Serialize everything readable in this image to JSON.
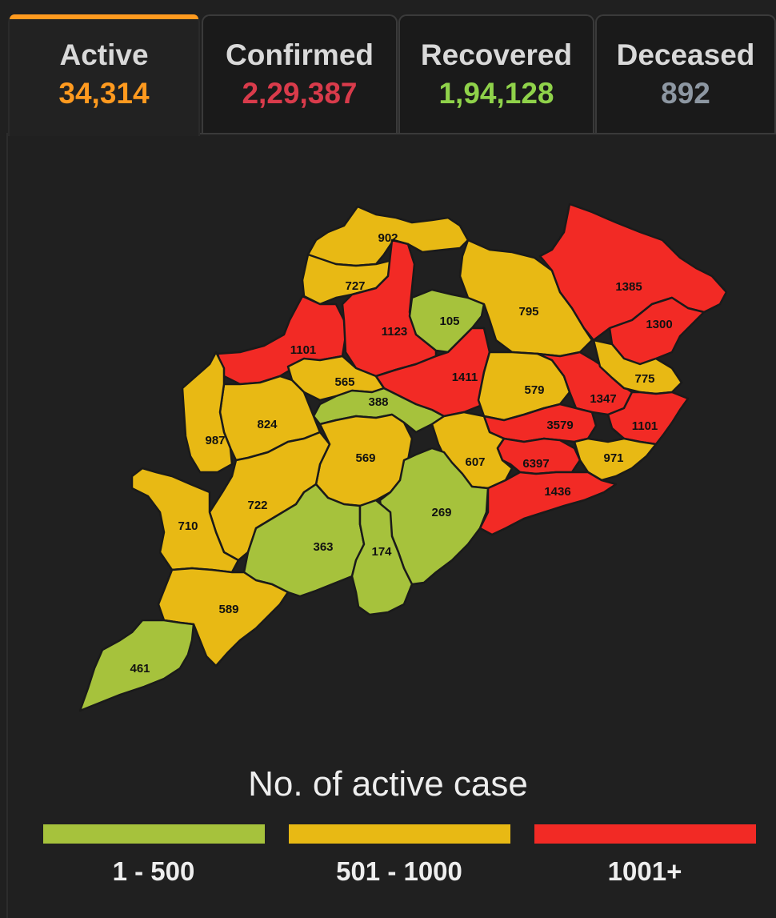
{
  "tabs": [
    {
      "label": "Active",
      "value": "34,314",
      "color": "#ff9a1f",
      "active": true
    },
    {
      "label": "Confirmed",
      "value": "2,29,387",
      "color": "#d93b4b",
      "active": false
    },
    {
      "label": "Recovered",
      "value": "1,94,128",
      "color": "#8fd24a",
      "active": false
    },
    {
      "label": "Deceased",
      "value": "892",
      "color": "#8d97a2",
      "active": false
    }
  ],
  "legend": {
    "title": "No. of active case",
    "ranges": [
      {
        "label": "1 - 500",
        "color": "#a6c23c"
      },
      {
        "label": "501 - 1000",
        "color": "#e8b914"
      },
      {
        "label": "1001+",
        "color": "#f22a25"
      }
    ]
  },
  "map": {
    "districts": [
      {
        "value": "902",
        "level": 1
      },
      {
        "value": "727",
        "level": 1
      },
      {
        "value": "1101",
        "level": 2
      },
      {
        "value": "1123",
        "level": 2
      },
      {
        "value": "105",
        "level": 0
      },
      {
        "value": "795",
        "level": 1
      },
      {
        "value": "1385",
        "level": 2
      },
      {
        "value": "1300",
        "level": 2
      },
      {
        "value": "565",
        "level": 1
      },
      {
        "value": "388",
        "level": 0
      },
      {
        "value": "1411",
        "level": 2
      },
      {
        "value": "579",
        "level": 1
      },
      {
        "value": "1347",
        "level": 2
      },
      {
        "value": "775",
        "level": 1
      },
      {
        "value": "824",
        "level": 1
      },
      {
        "value": "987",
        "level": 1
      },
      {
        "value": "569",
        "level": 1
      },
      {
        "value": "3579",
        "level": 2
      },
      {
        "value": "1101",
        "level": 2
      },
      {
        "value": "607",
        "level": 1
      },
      {
        "value": "6397",
        "level": 2
      },
      {
        "value": "971",
        "level": 1
      },
      {
        "value": "1436",
        "level": 2
      },
      {
        "value": "722",
        "level": 1
      },
      {
        "value": "269",
        "level": 0
      },
      {
        "value": "710",
        "level": 1
      },
      {
        "value": "363",
        "level": 0
      },
      {
        "value": "174",
        "level": 0
      },
      {
        "value": "589",
        "level": 1
      },
      {
        "value": "461",
        "level": 0
      }
    ]
  }
}
